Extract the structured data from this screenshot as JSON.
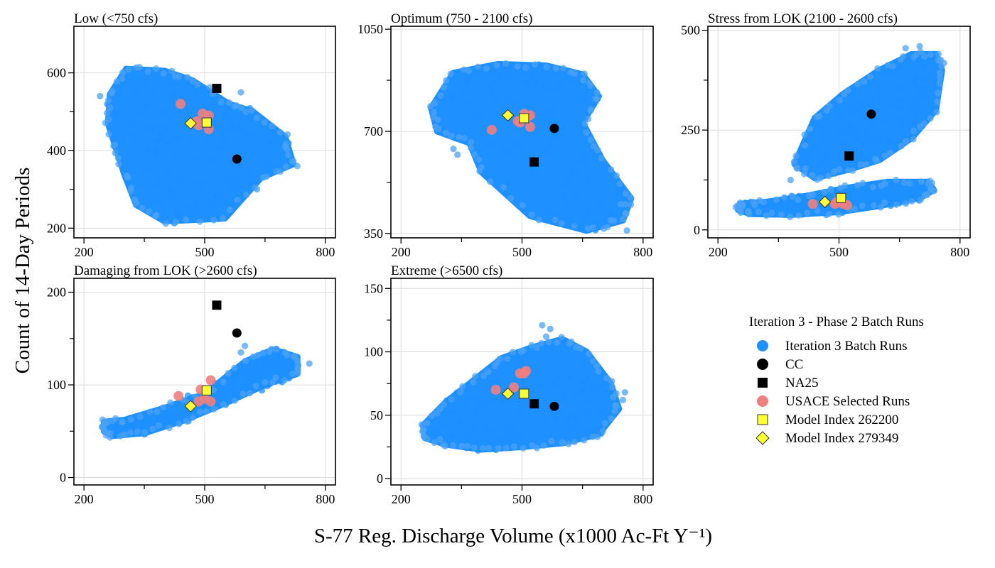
{
  "figure": {
    "ylabel": "Count of 14-Day Periods",
    "xlabel": "S-77 Reg. Discharge Volume (x1000 Ac-Ft Y⁻¹)"
  },
  "legend": {
    "title": "Iteration 3 - Phase 2 Batch Runs",
    "entries": [
      {
        "label": "Iteration 3 Batch Runs",
        "marker": "circle",
        "color": "#1E90FF"
      },
      {
        "label": "CC",
        "marker": "circle",
        "color": "#000000"
      },
      {
        "label": "NA25",
        "marker": "square",
        "color": "#000000"
      },
      {
        "label": "USACE Selected Runs",
        "marker": "circle",
        "color": "#F08080"
      },
      {
        "label": "Model Index 262200",
        "marker": "square",
        "color": "#FFFF33"
      },
      {
        "label": "Model Index 279349",
        "marker": "diamond",
        "color": "#FFFF33"
      }
    ]
  },
  "chart_data": [
    {
      "type": "scatter",
      "title": "Low (<750 cfs)",
      "xlim": [
        175,
        825
      ],
      "ylim": [
        175,
        720
      ],
      "xticks": [
        200,
        500,
        800
      ],
      "xminor": [
        350,
        650
      ],
      "yticks": [
        200,
        400,
        600
      ],
      "yminor": [
        300,
        500
      ],
      "batch_cloud": [
        [
          265,
          545
        ],
        [
          305,
          610
        ],
        [
          400,
          605
        ],
        [
          470,
          580
        ],
        [
          560,
          520
        ],
        [
          620,
          500
        ],
        [
          700,
          435
        ],
        [
          720,
          365
        ],
        [
          640,
          330
        ],
        [
          550,
          225
        ],
        [
          400,
          218
        ],
        [
          330,
          260
        ],
        [
          300,
          340
        ],
        [
          260,
          470
        ]
      ],
      "batch_outliers": [
        [
          285,
          380
        ],
        [
          590,
          550
        ],
        [
          700,
          410
        ],
        [
          730,
          360
        ],
        [
          240,
          540
        ],
        [
          630,
          300
        ]
      ],
      "usace": [
        [
          440,
          520
        ],
        [
          495,
          495
        ],
        [
          510,
          490
        ],
        [
          480,
          475
        ],
        [
          510,
          455
        ],
        [
          485,
          465
        ]
      ],
      "cc": [
        580,
        378
      ],
      "na25": [
        530,
        560
      ],
      "model_262200": [
        505,
        472
      ],
      "model_279349": [
        465,
        470
      ]
    },
    {
      "type": "scatter",
      "title": "Optimum (750 - 2100 cfs)",
      "xlim": [
        175,
        825
      ],
      "ylim": [
        335,
        1060
      ],
      "xticks": [
        200,
        500,
        800
      ],
      "xminor": [
        350,
        650
      ],
      "yticks": [
        350,
        700,
        1050
      ],
      "yminor": [
        525,
        875
      ],
      "batch_cloud": [
        [
          275,
          780
        ],
        [
          330,
          900
        ],
        [
          440,
          930
        ],
        [
          560,
          925
        ],
        [
          650,
          895
        ],
        [
          690,
          820
        ],
        [
          650,
          730
        ],
        [
          700,
          600
        ],
        [
          770,
          470
        ],
        [
          750,
          395
        ],
        [
          660,
          360
        ],
        [
          520,
          410
        ],
        [
          400,
          560
        ],
        [
          370,
          660
        ],
        [
          290,
          700
        ]
      ],
      "batch_outliers": [
        [
          760,
          360
        ],
        [
          745,
          450
        ],
        [
          720,
          395
        ],
        [
          340,
          620
        ],
        [
          330,
          640
        ]
      ],
      "usace": [
        [
          425,
          705
        ],
        [
          490,
          735
        ],
        [
          505,
          760
        ],
        [
          510,
          745
        ],
        [
          520,
          715
        ],
        [
          495,
          730
        ],
        [
          520,
          755
        ]
      ],
      "cc": [
        580,
        710
      ],
      "na25": [
        530,
        595
      ],
      "model_262200": [
        505,
        745
      ],
      "model_279349": [
        465,
        755
      ]
    },
    {
      "type": "scatter",
      "title": "Stress from LOK (2100 - 2600 cfs)",
      "xlim": [
        175,
        825
      ],
      "ylim": [
        -20,
        510
      ],
      "xticks": [
        200,
        500,
        800
      ],
      "xminor": [
        350,
        650
      ],
      "yticks": [
        0,
        250,
        500
      ],
      "yminor": [
        125,
        375
      ],
      "batch_cloud": [
        [
          390,
          165
        ],
        [
          440,
          280
        ],
        [
          510,
          340
        ],
        [
          600,
          400
        ],
        [
          680,
          440
        ],
        [
          740,
          440
        ],
        [
          755,
          400
        ],
        [
          740,
          300
        ],
        [
          680,
          230
        ],
        [
          600,
          175
        ],
        [
          520,
          150
        ],
        [
          440,
          130
        ]
      ],
      "batch_cloud2": [
        [
          255,
          65
        ],
        [
          320,
          70
        ],
        [
          420,
          85
        ],
        [
          520,
          105
        ],
        [
          620,
          120
        ],
        [
          720,
          120
        ],
        [
          735,
          100
        ],
        [
          700,
          80
        ],
        [
          600,
          60
        ],
        [
          500,
          45
        ],
        [
          380,
          38
        ],
        [
          280,
          40
        ],
        [
          250,
          50
        ]
      ],
      "batch_outliers": [
        [
          665,
          455
        ],
        [
          700,
          460
        ],
        [
          380,
          125
        ],
        [
          395,
          155
        ],
        [
          760,
          418
        ]
      ],
      "usace": [
        [
          435,
          65
        ],
        [
          490,
          65
        ],
        [
          510,
          65
        ],
        [
          520,
          62
        ],
        [
          495,
          70
        ]
      ],
      "cc": [
        580,
        290
      ],
      "na25": [
        525,
        185
      ],
      "model_262200": [
        505,
        80
      ],
      "model_279349": [
        465,
        70
      ]
    },
    {
      "type": "scatter",
      "title": "Damaging from LOK (>2600 cfs)",
      "xlim": [
        175,
        825
      ],
      "ylim": [
        -8,
        215
      ],
      "xticks": [
        200,
        500,
        800
      ],
      "xminor": [
        350,
        650
      ],
      "yticks": [
        0,
        100,
        200
      ],
      "yminor": [
        50,
        150
      ],
      "batch_cloud": [
        [
          250,
          60
        ],
        [
          300,
          62
        ],
        [
          400,
          75
        ],
        [
          500,
          90
        ],
        [
          600,
          125
        ],
        [
          670,
          138
        ],
        [
          730,
          130
        ],
        [
          730,
          112
        ],
        [
          650,
          100
        ],
        [
          550,
          80
        ],
        [
          450,
          62
        ],
        [
          350,
          48
        ],
        [
          270,
          45
        ],
        [
          250,
          50
        ]
      ],
      "batch_outliers": [
        [
          600,
          142
        ],
        [
          590,
          135
        ],
        [
          760,
          123
        ]
      ],
      "usace": [
        [
          435,
          88
        ],
        [
          490,
          95
        ],
        [
          515,
          105
        ],
        [
          500,
          85
        ],
        [
          515,
          82
        ],
        [
          485,
          82
        ]
      ],
      "cc": [
        580,
        156
      ],
      "na25": [
        530,
        186
      ],
      "model_262200": [
        505,
        94
      ],
      "model_279349": [
        465,
        77
      ]
    },
    {
      "type": "scatter",
      "title": "Extreme (>6500 cfs)",
      "xlim": [
        175,
        825
      ],
      "ylim": [
        -5,
        158
      ],
      "xticks": [
        200,
        500,
        800
      ],
      "xminor": [
        350,
        650
      ],
      "yticks": [
        0,
        50,
        100,
        150
      ],
      "yminor": [
        25,
        75,
        125
      ],
      "batch_cloud": [
        [
          255,
          42
        ],
        [
          310,
          60
        ],
        [
          390,
          80
        ],
        [
          450,
          95
        ],
        [
          520,
          103
        ],
        [
          600,
          110
        ],
        [
          660,
          100
        ],
        [
          720,
          75
        ],
        [
          740,
          55
        ],
        [
          690,
          35
        ],
        [
          600,
          28
        ],
        [
          500,
          25
        ],
        [
          400,
          23
        ],
        [
          310,
          27
        ],
        [
          260,
          32
        ]
      ],
      "batch_outliers": [
        [
          550,
          121
        ],
        [
          570,
          118
        ],
        [
          560,
          112
        ],
        [
          755,
          68
        ],
        [
          750,
          62
        ]
      ],
      "usace": [
        [
          435,
          70
        ],
        [
          495,
          83
        ],
        [
          510,
          85
        ],
        [
          480,
          72
        ],
        [
          505,
          83
        ]
      ],
      "cc": [
        580,
        57
      ],
      "na25": [
        530,
        59
      ],
      "model_262200": [
        505,
        67
      ],
      "model_279349": [
        465,
        67
      ]
    }
  ]
}
